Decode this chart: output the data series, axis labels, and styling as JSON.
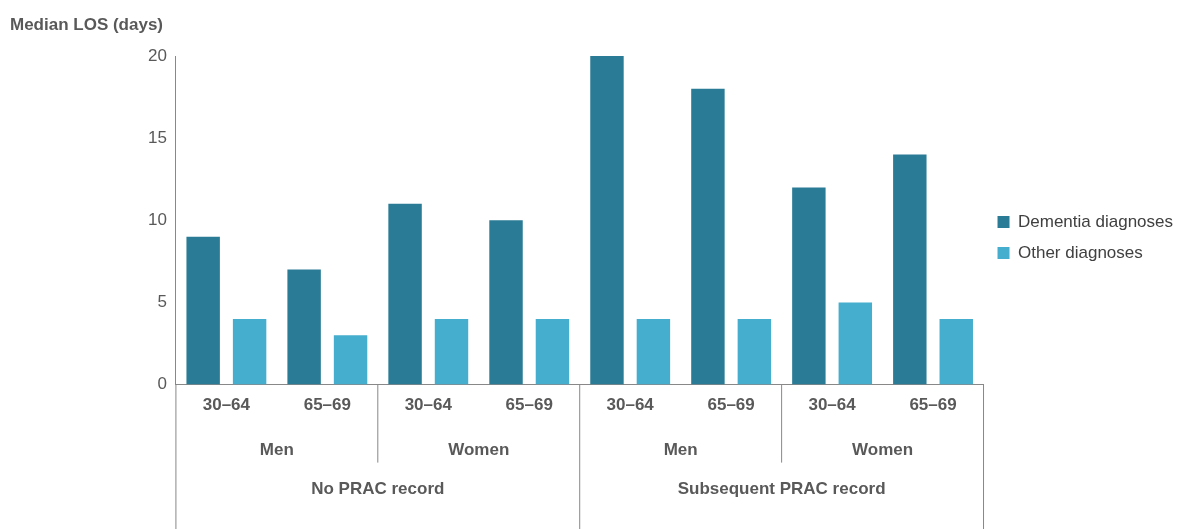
{
  "chart_data": {
    "type": "bar",
    "ylabel": "Median LOS (days)",
    "categories": [
      "30–64",
      "65–69",
      "30–64",
      "65–69",
      "30–64",
      "65–69",
      "30–64",
      "65–69"
    ],
    "series": [
      {
        "name": "Dementia diagnoses",
        "color": "#2a7b96",
        "values": [
          9,
          7,
          11,
          10,
          20,
          18,
          12,
          14
        ]
      },
      {
        "name": "Other diagnoses",
        "color": "#45aece",
        "values": [
          4,
          3,
          4,
          4,
          4,
          4,
          5,
          4
        ]
      }
    ],
    "annotations": [
      "Men",
      "Women",
      "Men",
      "Women",
      "No PRAC record",
      "Subsequent PRAC record"
    ],
    "ylim": [
      0,
      20
    ],
    "yticks": [
      0,
      5,
      10,
      15,
      20
    ],
    "grid": false,
    "legend": "right"
  }
}
